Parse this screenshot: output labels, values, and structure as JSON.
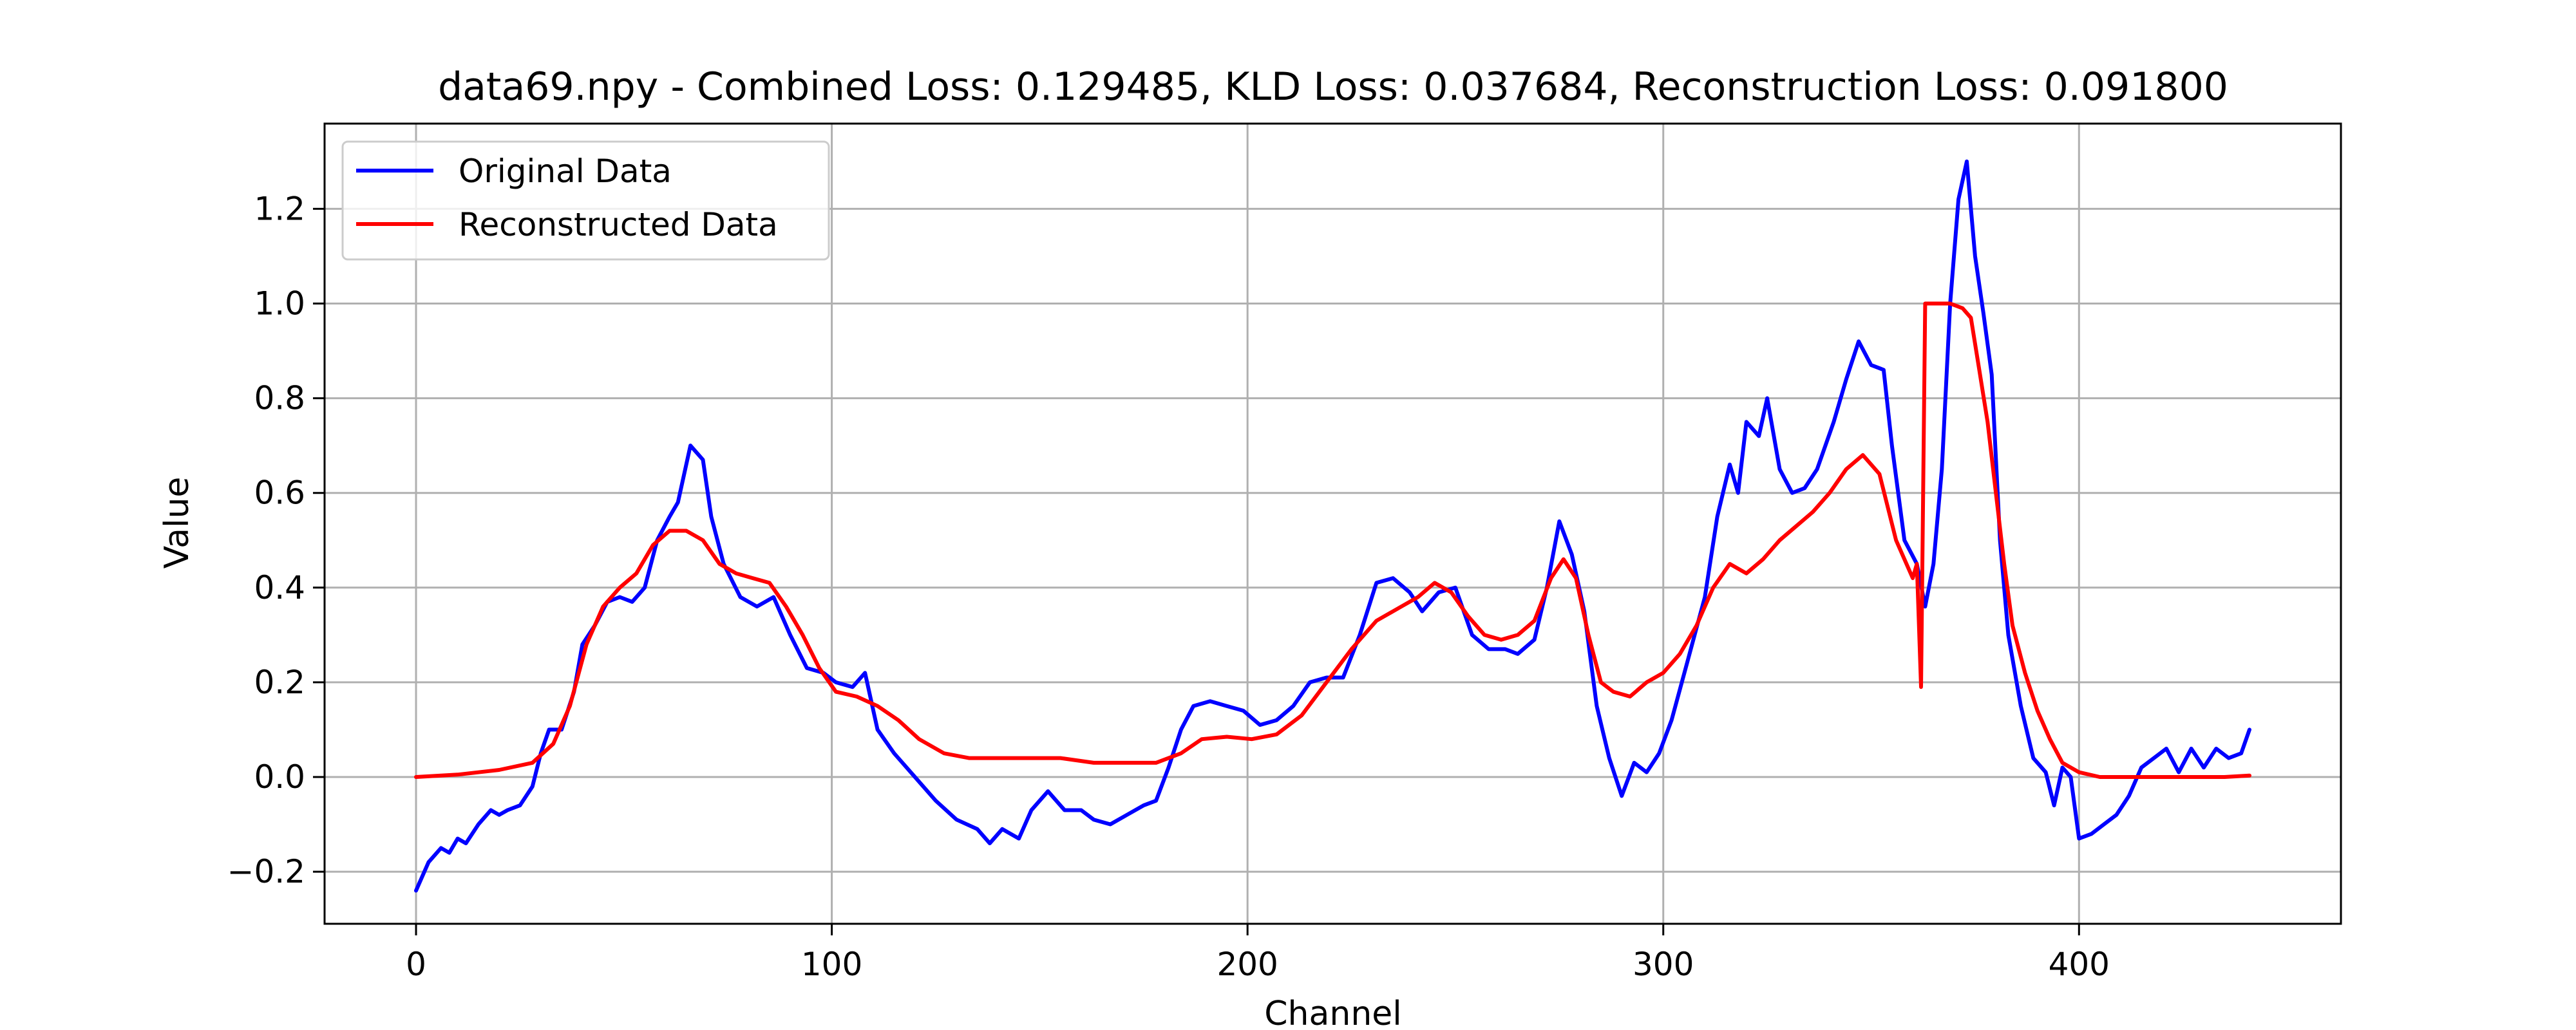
{
  "chart_data": {
    "type": "line",
    "title": "data69.npy - Combined Loss: 0.129485, KLD Loss: 0.037684, Reconstruction Loss: 0.091800",
    "xlabel": "Channel",
    "ylabel": "Value",
    "xlim": [
      -22,
      463
    ],
    "ylim": [
      -0.31,
      1.38
    ],
    "xticks": [
      0,
      100,
      200,
      300,
      400
    ],
    "xtick_labels": [
      "0",
      "100",
      "200",
      "300",
      "400"
    ],
    "yticks": [
      -0.2,
      0.0,
      0.2,
      0.4,
      0.6,
      0.8,
      1.0,
      1.2
    ],
    "ytick_labels": [
      "−0.2",
      "0.0",
      "0.2",
      "0.4",
      "0.6",
      "0.8",
      "1.0",
      "1.2"
    ],
    "grid": true,
    "legend": "top-left",
    "series": [
      {
        "name": "Original Data",
        "color": "#0000ff",
        "points": [
          [
            0,
            -0.24
          ],
          [
            3,
            -0.18
          ],
          [
            6,
            -0.15
          ],
          [
            8,
            -0.16
          ],
          [
            10,
            -0.13
          ],
          [
            12,
            -0.14
          ],
          [
            15,
            -0.1
          ],
          [
            18,
            -0.07
          ],
          [
            20,
            -0.08
          ],
          [
            22,
            -0.07
          ],
          [
            25,
            -0.06
          ],
          [
            28,
            -0.02
          ],
          [
            30,
            0.05
          ],
          [
            32,
            0.1
          ],
          [
            35,
            0.1
          ],
          [
            38,
            0.18
          ],
          [
            40,
            0.28
          ],
          [
            43,
            0.32
          ],
          [
            46,
            0.37
          ],
          [
            49,
            0.38
          ],
          [
            52,
            0.37
          ],
          [
            55,
            0.4
          ],
          [
            58,
            0.5
          ],
          [
            61,
            0.55
          ],
          [
            63,
            0.58
          ],
          [
            66,
            0.7
          ],
          [
            69,
            0.67
          ],
          [
            71,
            0.55
          ],
          [
            74,
            0.45
          ],
          [
            78,
            0.38
          ],
          [
            82,
            0.36
          ],
          [
            86,
            0.38
          ],
          [
            90,
            0.3
          ],
          [
            94,
            0.23
          ],
          [
            98,
            0.22
          ],
          [
            101,
            0.2
          ],
          [
            105,
            0.19
          ],
          [
            108,
            0.22
          ],
          [
            111,
            0.1
          ],
          [
            115,
            0.05
          ],
          [
            120,
            0.0
          ],
          [
            125,
            -0.05
          ],
          [
            130,
            -0.09
          ],
          [
            135,
            -0.11
          ],
          [
            138,
            -0.14
          ],
          [
            141,
            -0.11
          ],
          [
            145,
            -0.13
          ],
          [
            148,
            -0.07
          ],
          [
            152,
            -0.03
          ],
          [
            156,
            -0.07
          ],
          [
            160,
            -0.07
          ],
          [
            163,
            -0.09
          ],
          [
            167,
            -0.1
          ],
          [
            171,
            -0.08
          ],
          [
            175,
            -0.06
          ],
          [
            178,
            -0.05
          ],
          [
            181,
            0.02
          ],
          [
            184,
            0.1
          ],
          [
            187,
            0.15
          ],
          [
            191,
            0.16
          ],
          [
            195,
            0.15
          ],
          [
            199,
            0.14
          ],
          [
            203,
            0.11
          ],
          [
            207,
            0.12
          ],
          [
            211,
            0.15
          ],
          [
            215,
            0.2
          ],
          [
            219,
            0.21
          ],
          [
            223,
            0.21
          ],
          [
            227,
            0.3
          ],
          [
            231,
            0.41
          ],
          [
            235,
            0.42
          ],
          [
            239,
            0.39
          ],
          [
            242,
            0.35
          ],
          [
            246,
            0.39
          ],
          [
            250,
            0.4
          ],
          [
            254,
            0.3
          ],
          [
            258,
            0.27
          ],
          [
            262,
            0.27
          ],
          [
            265,
            0.26
          ],
          [
            269,
            0.29
          ],
          [
            272,
            0.4
          ],
          [
            275,
            0.54
          ],
          [
            278,
            0.47
          ],
          [
            281,
            0.35
          ],
          [
            284,
            0.15
          ],
          [
            287,
            0.04
          ],
          [
            290,
            -0.04
          ],
          [
            293,
            0.03
          ],
          [
            296,
            0.01
          ],
          [
            299,
            0.05
          ],
          [
            302,
            0.12
          ],
          [
            306,
            0.25
          ],
          [
            310,
            0.38
          ],
          [
            313,
            0.55
          ],
          [
            316,
            0.66
          ],
          [
            318,
            0.6
          ],
          [
            320,
            0.75
          ],
          [
            323,
            0.72
          ],
          [
            325,
            0.8
          ],
          [
            328,
            0.65
          ],
          [
            331,
            0.6
          ],
          [
            334,
            0.61
          ],
          [
            337,
            0.65
          ],
          [
            341,
            0.75
          ],
          [
            344,
            0.84
          ],
          [
            347,
            0.92
          ],
          [
            350,
            0.87
          ],
          [
            353,
            0.86
          ],
          [
            355,
            0.7
          ],
          [
            358,
            0.5
          ],
          [
            361,
            0.45
          ],
          [
            363,
            0.36
          ],
          [
            365,
            0.45
          ],
          [
            367,
            0.65
          ],
          [
            369,
            1.0
          ],
          [
            371,
            1.22
          ],
          [
            373,
            1.3
          ],
          [
            375,
            1.1
          ],
          [
            377,
            0.98
          ],
          [
            379,
            0.85
          ],
          [
            381,
            0.5
          ],
          [
            383,
            0.3
          ],
          [
            386,
            0.15
          ],
          [
            389,
            0.04
          ],
          [
            392,
            0.01
          ],
          [
            394,
            -0.06
          ],
          [
            396,
            0.02
          ],
          [
            398,
            0.0
          ],
          [
            400,
            -0.13
          ],
          [
            403,
            -0.12
          ],
          [
            406,
            -0.1
          ],
          [
            409,
            -0.08
          ],
          [
            412,
            -0.04
          ],
          [
            415,
            0.02
          ],
          [
            418,
            0.04
          ],
          [
            421,
            0.06
          ],
          [
            424,
            0.01
          ],
          [
            427,
            0.06
          ],
          [
            430,
            0.02
          ],
          [
            433,
            0.06
          ],
          [
            436,
            0.04
          ],
          [
            439,
            0.05
          ],
          [
            441,
            0.1
          ]
        ]
      },
      {
        "name": "Reconstructed Data",
        "color": "#ff0000",
        "points": [
          [
            0,
            0.0
          ],
          [
            10,
            0.005
          ],
          [
            20,
            0.015
          ],
          [
            28,
            0.03
          ],
          [
            33,
            0.07
          ],
          [
            37,
            0.15
          ],
          [
            41,
            0.28
          ],
          [
            45,
            0.36
          ],
          [
            49,
            0.4
          ],
          [
            53,
            0.43
          ],
          [
            57,
            0.49
          ],
          [
            61,
            0.52
          ],
          [
            65,
            0.52
          ],
          [
            69,
            0.5
          ],
          [
            73,
            0.45
          ],
          [
            77,
            0.43
          ],
          [
            81,
            0.42
          ],
          [
            85,
            0.41
          ],
          [
            89,
            0.36
          ],
          [
            93,
            0.3
          ],
          [
            97,
            0.23
          ],
          [
            101,
            0.18
          ],
          [
            106,
            0.17
          ],
          [
            111,
            0.15
          ],
          [
            116,
            0.12
          ],
          [
            121,
            0.08
          ],
          [
            127,
            0.05
          ],
          [
            133,
            0.04
          ],
          [
            140,
            0.04
          ],
          [
            147,
            0.04
          ],
          [
            155,
            0.04
          ],
          [
            163,
            0.03
          ],
          [
            171,
            0.03
          ],
          [
            178,
            0.03
          ],
          [
            184,
            0.05
          ],
          [
            189,
            0.08
          ],
          [
            195,
            0.085
          ],
          [
            201,
            0.08
          ],
          [
            207,
            0.09
          ],
          [
            213,
            0.13
          ],
          [
            219,
            0.2
          ],
          [
            225,
            0.27
          ],
          [
            231,
            0.33
          ],
          [
            237,
            0.36
          ],
          [
            241,
            0.38
          ],
          [
            245,
            0.41
          ],
          [
            249,
            0.39
          ],
          [
            253,
            0.34
          ],
          [
            257,
            0.3
          ],
          [
            261,
            0.29
          ],
          [
            265,
            0.3
          ],
          [
            269,
            0.33
          ],
          [
            273,
            0.42
          ],
          [
            276,
            0.46
          ],
          [
            279,
            0.42
          ],
          [
            282,
            0.3
          ],
          [
            285,
            0.2
          ],
          [
            288,
            0.18
          ],
          [
            292,
            0.17
          ],
          [
            296,
            0.2
          ],
          [
            300,
            0.22
          ],
          [
            304,
            0.26
          ],
          [
            308,
            0.32
          ],
          [
            312,
            0.4
          ],
          [
            316,
            0.45
          ],
          [
            320,
            0.43
          ],
          [
            324,
            0.46
          ],
          [
            328,
            0.5
          ],
          [
            332,
            0.53
          ],
          [
            336,
            0.56
          ],
          [
            340,
            0.6
          ],
          [
            344,
            0.65
          ],
          [
            348,
            0.68
          ],
          [
            352,
            0.64
          ],
          [
            356,
            0.5
          ],
          [
            360,
            0.42
          ],
          [
            361,
            0.45
          ],
          [
            362,
            0.19
          ],
          [
            363,
            1.0
          ],
          [
            366,
            1.0
          ],
          [
            369,
            1.0
          ],
          [
            372,
            0.99
          ],
          [
            374,
            0.97
          ],
          [
            376,
            0.86
          ],
          [
            378,
            0.75
          ],
          [
            380,
            0.6
          ],
          [
            382,
            0.45
          ],
          [
            384,
            0.32
          ],
          [
            387,
            0.22
          ],
          [
            390,
            0.14
          ],
          [
            393,
            0.08
          ],
          [
            396,
            0.03
          ],
          [
            400,
            0.01
          ],
          [
            405,
            0.0
          ],
          [
            415,
            0.0
          ],
          [
            425,
            0.0
          ],
          [
            435,
            0.0
          ],
          [
            441,
            0.003
          ]
        ]
      }
    ]
  }
}
